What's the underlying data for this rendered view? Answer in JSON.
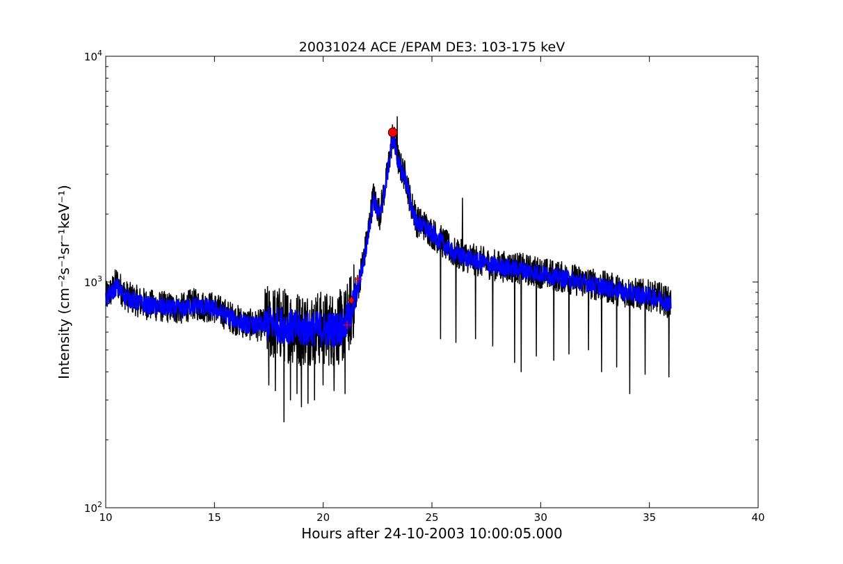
{
  "chart_data": {
    "type": "line",
    "title": "20031024 ACE /EPAM DE3: 103-175 keV",
    "xlabel": "Hours after 24-10-2003 10:00:05.000",
    "ylabel": "Intensity (cm⁻²s⁻¹sr⁻¹keV⁻¹)",
    "xlim": [
      10,
      40
    ],
    "ylim": [
      100,
      10000
    ],
    "yscale": "log",
    "grid": false,
    "x_ticks": [
      10,
      15,
      20,
      25,
      30,
      35,
      40
    ],
    "x_tick_labels": [
      "10",
      "15",
      "20",
      "25",
      "30",
      "35",
      "40"
    ],
    "y_ticks": [
      100,
      1000,
      10000
    ],
    "y_tick_labels": [
      {
        "base": "10",
        "exp": "2"
      },
      {
        "base": "10",
        "exp": "3"
      },
      {
        "base": "10",
        "exp": "4"
      }
    ],
    "series": [
      {
        "role": "raw",
        "color": "#000000",
        "x": [
          10.0,
          10.3,
          10.5,
          10.8,
          11.0,
          11.5,
          12.0,
          12.5,
          13.0,
          13.5,
          14.0,
          14.5,
          15.0,
          15.5,
          16.0,
          16.5,
          17.0,
          17.5,
          18.0,
          18.5,
          19.0,
          19.5,
          20.0,
          20.5,
          21.0,
          21.3,
          21.6,
          22.0,
          22.3,
          22.6,
          22.9,
          23.2,
          23.5,
          23.8,
          24.0,
          24.3,
          24.6,
          25.0,
          25.5,
          26.0,
          26.5,
          27.0,
          28.0,
          29.0,
          30.0,
          31.0,
          32.0,
          33.0,
          34.0,
          35.0,
          35.5,
          36.0
        ],
        "y": [
          850,
          920,
          1000,
          900,
          860,
          820,
          790,
          780,
          770,
          760,
          800,
          780,
          770,
          720,
          680,
          650,
          640,
          660,
          650,
          640,
          620,
          630,
          620,
          620,
          640,
          760,
          950,
          1500,
          2400,
          2000,
          2800,
          4500,
          3300,
          2900,
          2300,
          1850,
          1800,
          1650,
          1500,
          1350,
          1300,
          1250,
          1180,
          1150,
          1100,
          1050,
          1000,
          950,
          900,
          870,
          850,
          800
        ],
        "spikes": [
          [
            17.5,
            350
          ],
          [
            17.8,
            330
          ],
          [
            18.2,
            240
          ],
          [
            18.5,
            300
          ],
          [
            18.8,
            320
          ],
          [
            19.0,
            280
          ],
          [
            19.3,
            290
          ],
          [
            19.6,
            300
          ],
          [
            20.0,
            350
          ],
          [
            20.5,
            330
          ],
          [
            21.0,
            320
          ],
          [
            21.8,
            1350
          ],
          [
            23.4,
            5400
          ],
          [
            24.2,
            2300
          ],
          [
            25.4,
            560
          ],
          [
            26.1,
            540
          ],
          [
            26.4,
            2350
          ],
          [
            27.0,
            560
          ],
          [
            27.8,
            520
          ],
          [
            28.8,
            440
          ],
          [
            29.1,
            400
          ],
          [
            29.8,
            470
          ],
          [
            30.6,
            450
          ],
          [
            31.3,
            480
          ],
          [
            32.2,
            500
          ],
          [
            32.8,
            400
          ],
          [
            33.5,
            420
          ],
          [
            34.1,
            320
          ],
          [
            34.8,
            390
          ],
          [
            35.9,
            380
          ]
        ]
      },
      {
        "role": "smoothed",
        "color": "#0000ff",
        "x": [
          10.0,
          10.3,
          10.5,
          10.8,
          11.0,
          11.5,
          12.0,
          12.5,
          13.0,
          13.5,
          14.0,
          14.5,
          15.0,
          15.5,
          16.0,
          16.5,
          17.0,
          17.5,
          18.0,
          18.5,
          19.0,
          19.5,
          20.0,
          20.5,
          21.0,
          21.3,
          21.6,
          22.0,
          22.3,
          22.6,
          22.9,
          23.2,
          23.5,
          23.8,
          24.0,
          24.3,
          24.6,
          25.0,
          25.5,
          26.0,
          26.5,
          27.0,
          28.0,
          29.0,
          30.0,
          31.0,
          32.0,
          33.0,
          34.0,
          35.0,
          35.5,
          36.0
        ],
        "y": [
          840,
          900,
          960,
          880,
          850,
          810,
          785,
          775,
          765,
          755,
          790,
          775,
          760,
          715,
          675,
          648,
          640,
          655,
          645,
          635,
          615,
          625,
          615,
          618,
          635,
          750,
          930,
          1450,
          2350,
          1950,
          2750,
          4400,
          3250,
          2850,
          2250,
          1820,
          1770,
          1630,
          1480,
          1340,
          1290,
          1240,
          1170,
          1140,
          1090,
          1040,
          995,
          945,
          895,
          865,
          845,
          795
        ]
      }
    ],
    "markers": [
      {
        "shape": "circle",
        "color": "#ff0000",
        "x": 23.2,
        "y": 4600
      },
      {
        "shape": "diamond",
        "color": "#ff0000",
        "x": 21.3,
        "y": 830
      },
      {
        "shape": "plus",
        "color": "#ff0000",
        "x": 21.6,
        "y": 1030
      },
      {
        "shape": "plus",
        "color": "#ff0000",
        "x": 21.1,
        "y": 645
      }
    ]
  }
}
